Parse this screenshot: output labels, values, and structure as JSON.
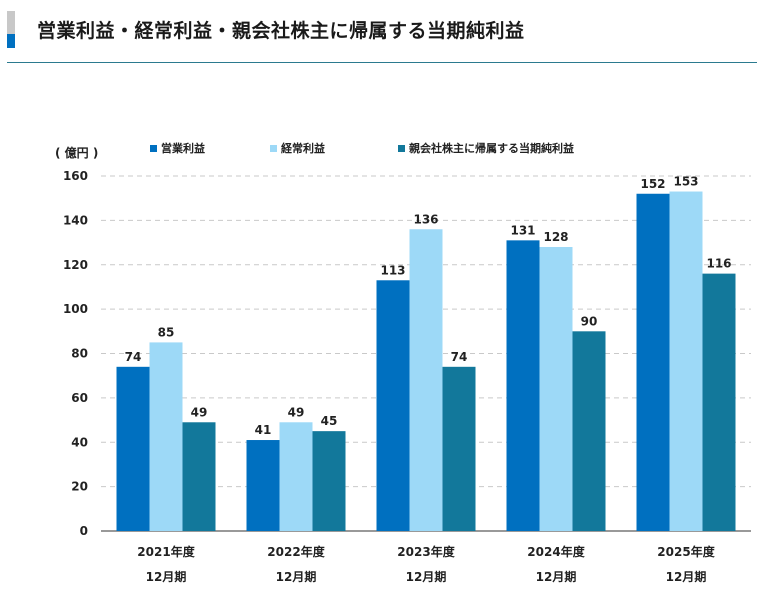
{
  "page": {
    "title": "営業利益・経常利益・親会社株主に帰属する当期純利益"
  },
  "colors": {
    "accent_gray": "#c8c8c8",
    "accent_blue": "#0070c0",
    "rule": "#2b7a8f"
  },
  "chart_data": {
    "type": "bar",
    "title": "",
    "ylabel": "( 億円 )",
    "xlabel": "",
    "ylim": [
      0,
      160
    ],
    "yticks": [
      0,
      20,
      40,
      60,
      80,
      100,
      120,
      140,
      160
    ],
    "grid": true,
    "legend_position": "top",
    "categories": [
      [
        "2021年度",
        "12月期"
      ],
      [
        "2022年度",
        "12月期"
      ],
      [
        "2023年度",
        "12月期"
      ],
      [
        "2024年度",
        "12月期"
      ],
      [
        "2025年度",
        "12月期"
      ]
    ],
    "series": [
      {
        "name": "営業利益",
        "color": "#0070c0",
        "values": [
          74,
          41,
          113,
          131,
          152
        ]
      },
      {
        "name": "経常利益",
        "color": "#9dd9f7",
        "values": [
          85,
          49,
          136,
          128,
          153
        ]
      },
      {
        "name": "親会社株主に帰属する当期純利益",
        "color": "#12789b",
        "values": [
          49,
          45,
          74,
          90,
          116
        ]
      }
    ]
  }
}
